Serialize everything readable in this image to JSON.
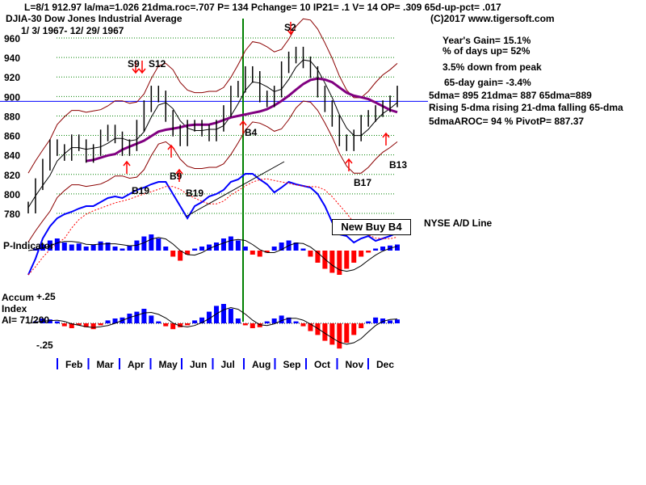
{
  "header": {
    "stats": "L=8/1  912.97  la/ma=1.026 21dma.roc=.707 P=  134 Pchange=  10 IP21= .1 V= 14 OP= .309 65d-up-pct= .017",
    "index": "DJIA-30  Dow Jones Industrial Average",
    "range": "1/ 3/ 1967- 12/ 29/ 1967",
    "copyright": "(C)2017 www.tigersoft.com"
  },
  "side": {
    "years_gain": "Year's Gain= 15.1%",
    "days_up": "% of days up= 52%",
    "gain65": "65-day gain= -3.4%",
    "dma": "5dma= 895 21dma= 887 65dma=889",
    "down_from_peak": "3.5% down from peak",
    "trend": "Rising 5-dma rising 21-dma falling 65-dma",
    "aroc": "5dmaAROC= 94 %  PivotP= 887.37",
    "nyse_ad": "NYSE A/D Line",
    "new_buy": "New Buy B4"
  },
  "panels": {
    "p_indicator": "P-Indicator",
    "accum1": "Accum",
    "accum2": "Index",
    "ai": "AI= 71/200",
    "ai_top": "+.25",
    "ai_bottom": "-.25"
  },
  "chart_data": {
    "type": "line",
    "title": "DJIA-30 Dow Jones Industrial Average",
    "ylim": [
      780,
      960
    ],
    "yticks": [
      960,
      940,
      920,
      900,
      880,
      860,
      840,
      820,
      800,
      780
    ],
    "months": [
      "Feb",
      "Mar",
      "Apr",
      "May",
      "Jun",
      "Jul",
      "Aug",
      "Sep",
      "Oct",
      "Nov",
      "Dec"
    ],
    "reference_line": 895,
    "weekly_close": [
      786,
      810,
      830,
      850,
      845,
      840,
      855,
      850,
      838,
      845,
      860,
      865,
      858,
      845,
      850,
      870,
      890,
      905,
      900,
      880,
      865,
      855,
      870,
      870,
      865,
      860,
      870,
      885,
      905,
      910,
      925,
      920,
      900,
      895,
      905,
      930,
      940,
      945,
      935,
      925,
      905,
      890,
      875,
      855,
      850,
      860,
      875,
      880,
      885,
      890,
      895,
      905
    ],
    "nyse_ad_line": [
      10,
      30,
      55,
      70,
      80,
      85,
      88,
      92,
      95,
      95,
      100,
      105,
      107,
      105,
      110,
      115,
      118,
      122,
      125,
      125,
      110,
      95,
      80,
      95,
      100,
      107,
      110,
      115,
      125,
      128,
      135,
      135,
      128,
      122,
      112,
      118,
      125,
      122,
      120,
      118,
      110,
      95,
      75,
      60,
      58,
      50,
      55,
      58,
      52,
      55,
      58,
      62
    ],
    "p_indicator": [
      0,
      10,
      30,
      50,
      60,
      40,
      30,
      35,
      20,
      30,
      45,
      40,
      20,
      10,
      25,
      50,
      70,
      80,
      60,
      20,
      -30,
      -50,
      -20,
      10,
      20,
      30,
      40,
      60,
      70,
      50,
      20,
      -20,
      -30,
      -10,
      20,
      40,
      50,
      40,
      10,
      -30,
      -60,
      -90,
      -110,
      -120,
      -90,
      -60,
      -30,
      -10,
      10,
      20,
      25,
      30
    ],
    "accum_index": [
      0,
      0.02,
      0.05,
      0.04,
      0.02,
      -0.03,
      -0.05,
      -0.02,
      -0.04,
      -0.06,
      -0.02,
      0.03,
      0.05,
      0.06,
      0.1,
      0.12,
      0.15,
      0.08,
      0.02,
      -0.03,
      -0.06,
      -0.04,
      -0.02,
      0.03,
      0.06,
      0.12,
      0.18,
      0.2,
      0.15,
      0.05,
      -0.02,
      -0.05,
      -0.04,
      0.02,
      0.05,
      0.08,
      0.06,
      0.02,
      -0.03,
      -0.08,
      -0.12,
      -0.18,
      -0.22,
      -0.26,
      -0.2,
      -0.12,
      -0.05,
      0.02,
      0.06,
      0.05,
      0.03,
      0.04
    ],
    "signals": [
      {
        "label": "S9",
        "type": "sell"
      },
      {
        "label": "S12",
        "type": "sell"
      },
      {
        "label": "S2",
        "type": "sell"
      },
      {
        "label": "B19",
        "type": "buy"
      },
      {
        "label": "B9",
        "type": "buy"
      },
      {
        "label": "B19",
        "type": "buy"
      },
      {
        "label": "B4",
        "type": "buy"
      },
      {
        "label": "B17",
        "type": "buy"
      },
      {
        "label": "B13",
        "type": "buy"
      }
    ],
    "colors": {
      "price": "#000000",
      "band": "#8b0000",
      "ma65": "#800080",
      "ad": "#0000ff",
      "grid": "#008000",
      "buy": "#ff0000",
      "signal_line": "#008000"
    }
  }
}
